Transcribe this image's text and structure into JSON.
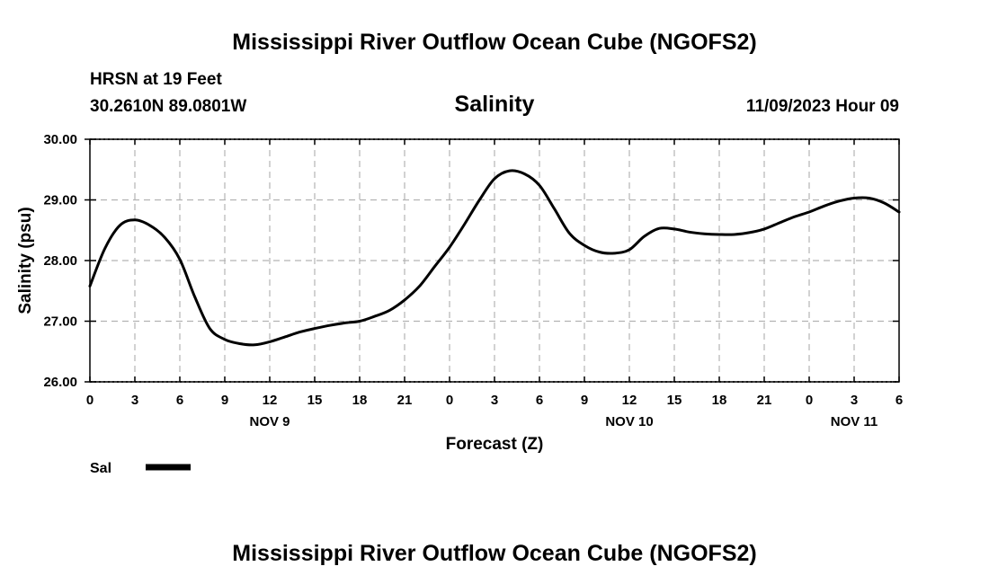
{
  "chart_data": {
    "type": "line",
    "title": "Mississippi River Outflow Ocean Cube (NGOFS2)",
    "footer_title": "Mississippi River Outflow Ocean Cube (NGOFS2)",
    "station": "HRSN at 19 Feet",
    "location": "30.2610N  89.0801W",
    "variable": "Salinity",
    "timestamp": "11/09/2023 Hour 09",
    "xlabel": "Forecast (Z)",
    "ylabel": "Salinity (psu)",
    "xlim": [
      0,
      54
    ],
    "ylim": [
      26,
      30
    ],
    "y_ticks": [
      26,
      27,
      28,
      29,
      30
    ],
    "y_tick_labels": [
      "26.00",
      "27.00",
      "28.00",
      "29.00",
      "30.00"
    ],
    "x_ticks": [
      0,
      3,
      6,
      9,
      12,
      15,
      18,
      21,
      24,
      27,
      30,
      33,
      36,
      39,
      42,
      45,
      48,
      51,
      54
    ],
    "x_tick_labels": [
      "0",
      "3",
      "6",
      "9",
      "12",
      "15",
      "18",
      "21",
      "0",
      "3",
      "6",
      "9",
      "12",
      "15",
      "18",
      "21",
      "0",
      "3",
      "6"
    ],
    "day_labels": [
      {
        "x": 12,
        "label": "NOV 9"
      },
      {
        "x": 36,
        "label": "NOV 10"
      },
      {
        "x": 51,
        "label": "NOV 11"
      }
    ],
    "grid": true,
    "series": [
      {
        "name": "Sal",
        "color": "#000000",
        "x": [
          0,
          1,
          2,
          3,
          4,
          5,
          6,
          7,
          8,
          9,
          10,
          11,
          12,
          13,
          14,
          15,
          16,
          17,
          18,
          19,
          20,
          21,
          22,
          23,
          24,
          25,
          26,
          27,
          28,
          29,
          30,
          31,
          32,
          33,
          34,
          35,
          36,
          37,
          38,
          39,
          40,
          41,
          42,
          43,
          44,
          45,
          46,
          47,
          48,
          49,
          50,
          51,
          52,
          53,
          54
        ],
        "values": [
          27.58,
          28.2,
          28.58,
          28.67,
          28.58,
          28.38,
          28.02,
          27.4,
          26.88,
          26.7,
          26.63,
          26.61,
          26.66,
          26.74,
          26.82,
          26.88,
          26.93,
          26.97,
          27.0,
          27.08,
          27.18,
          27.35,
          27.58,
          27.9,
          28.22,
          28.6,
          29.0,
          29.35,
          29.48,
          29.43,
          29.24,
          28.85,
          28.45,
          28.25,
          28.14,
          28.12,
          28.18,
          28.4,
          28.53,
          28.52,
          28.47,
          28.44,
          28.43,
          28.43,
          28.46,
          28.52,
          28.62,
          28.72,
          28.8,
          28.9,
          28.98,
          29.03,
          29.03,
          28.95,
          28.8
        ]
      }
    ]
  },
  "legend": {
    "label": "Sal"
  }
}
